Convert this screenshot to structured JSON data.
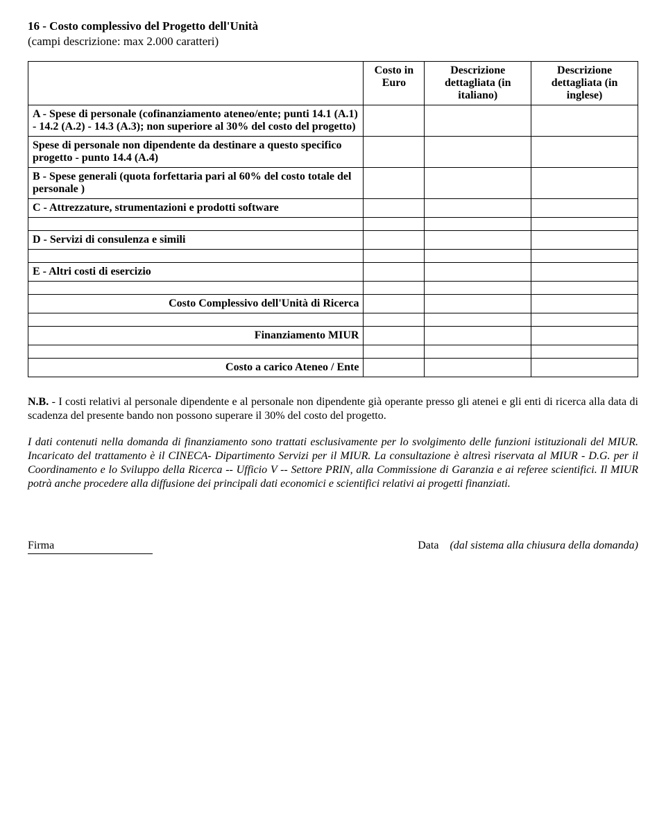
{
  "section": {
    "title": "16 - Costo complessivo del Progetto dell'Unità",
    "subtitle": "(campi descrizione: max 2.000 caratteri)"
  },
  "table": {
    "headers": {
      "costo_euro": "Costo in Euro",
      "desc_it": "Descrizione dettagliata (in italiano)",
      "desc_en": "Descrizione dettagliata (in inglese)"
    },
    "rows": {
      "a1": "A - Spese di personale (cofinanziamento ateneo/ente; punti 14.1 (A.1) - 14.2 (A.2) - 14.3 (A.3); non superiore al 30% del costo del progetto)",
      "a2": "Spese di personale non dipendente da destinare a questo specifico progetto - punto 14.4 (A.4)",
      "b": "B - Spese generali (quota forfettaria pari al 60% del costo totale del personale )",
      "c": "C - Attrezzature, strumentazioni e prodotti software",
      "d": "D - Servizi di consulenza e simili",
      "e": "E - Altri costi di esercizio",
      "total": "Costo Complessivo dell'Unità di Ricerca",
      "miur": "Finanziamento MIUR",
      "ateneo": "Costo a carico Ateneo / Ente"
    }
  },
  "note": {
    "nb_label": "N.B.",
    "nb_text": " - I costi relativi al personale dipendente e al personale non dipendente già operante presso gli atenei e gli enti di ricerca alla data di scadenza del presente bando non possono superare il 30% del costo del progetto.",
    "italic": "I dati contenuti nella domanda di finanziamento sono trattati esclusivamente per lo svolgimento delle funzioni istituzionali del MIUR. Incaricato del trattamento è il CINECA- Dipartimento Servizi per il MIUR. La consultazione è altresì riservata al MIUR - D.G. per il Coordinamento e lo Sviluppo della Ricerca -- Ufficio V -- Settore PRIN, alla Commissione di Garanzia e ai referee scientifici. Il MIUR potrà anche procedere alla diffusione dei principali dati economici e scientifici relativi ai progetti finanziati."
  },
  "footer": {
    "firma": "Firma",
    "data": "Data",
    "data_note": "(dal sistema alla chiusura della domanda)"
  }
}
